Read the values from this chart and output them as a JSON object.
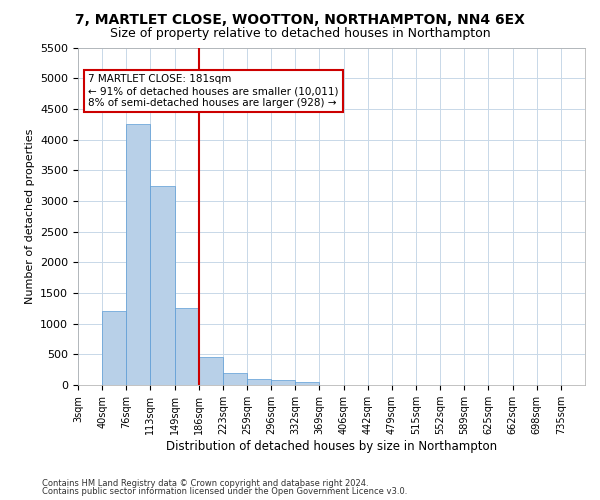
{
  "title": "7, MARTLET CLOSE, WOOTTON, NORTHAMPTON, NN4 6EX",
  "subtitle": "Size of property relative to detached houses in Northampton",
  "xlabel": "Distribution of detached houses by size in Northampton",
  "ylabel": "Number of detached properties",
  "bins": [
    "3sqm",
    "40sqm",
    "76sqm",
    "113sqm",
    "149sqm",
    "186sqm",
    "223sqm",
    "259sqm",
    "296sqm",
    "332sqm",
    "369sqm",
    "406sqm",
    "442sqm",
    "479sqm",
    "515sqm",
    "552sqm",
    "589sqm",
    "625sqm",
    "662sqm",
    "698sqm",
    "735sqm"
  ],
  "bin_edges": [
    3,
    40,
    76,
    113,
    149,
    186,
    223,
    259,
    296,
    332,
    369,
    406,
    442,
    479,
    515,
    552,
    589,
    625,
    662,
    698,
    735
  ],
  "bar_heights": [
    0,
    1200,
    4250,
    3250,
    1250,
    450,
    200,
    100,
    75,
    50,
    0,
    0,
    0,
    0,
    0,
    0,
    0,
    0,
    0,
    0
  ],
  "bar_color": "#b8d0e8",
  "bar_edgecolor": "#5b9bd5",
  "grid_color": "#c8d8e8",
  "annotation_line_color": "#cc0000",
  "annotation_box_text": "7 MARTLET CLOSE: 181sqm\n← 91% of detached houses are smaller (10,011)\n8% of semi-detached houses are larger (928) →",
  "annotation_box_color": "#cc0000",
  "ylim": [
    0,
    5500
  ],
  "yticks": [
    0,
    500,
    1000,
    1500,
    2000,
    2500,
    3000,
    3500,
    4000,
    4500,
    5000,
    5500
  ],
  "footer_line1": "Contains HM Land Registry data © Crown copyright and database right 2024.",
  "footer_line2": "Contains public sector information licensed under the Open Government Licence v3.0.",
  "bg_color": "#ffffff",
  "title_fontsize": 10,
  "subtitle_fontsize": 9
}
